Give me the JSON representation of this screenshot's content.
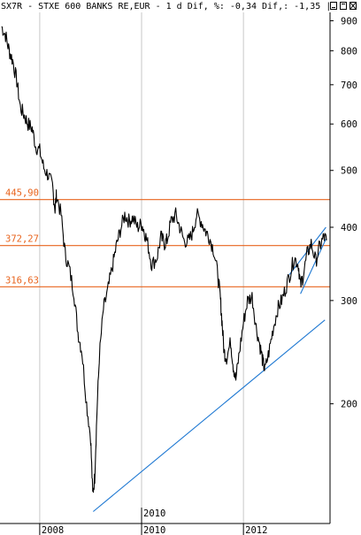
{
  "header": {
    "symbol": "SX7R",
    "text": "SX7R - STXE 600 BANKS RE,EUR -  1 d Dif, %: -0,34 Dif,: -1,35 |"
  },
  "colors": {
    "price": "#000000",
    "horizontal_levels": "#e8641e",
    "trendlines": "#1e78d2",
    "grid": "#c8c8c8",
    "background": "#ffffff"
  },
  "icons": [
    "minimize-icon",
    "maximize-icon",
    "close-icon"
  ],
  "chart_data": {
    "type": "line",
    "title": "SX7R - STXE 600 BANKS RE,EUR -  1 d Dif, %: -0,34 Dif,: -1,35",
    "y_scale": "log",
    "ylim": [
      125,
      930
    ],
    "xlim": [
      2007.22,
      2013.7
    ],
    "y_ticks": [
      900,
      800,
      700,
      600,
      500,
      400,
      300,
      200
    ],
    "x_ticks": [
      {
        "value": 2008,
        "label": "2008"
      },
      {
        "value": 2010,
        "label": "2010"
      },
      {
        "value": 2012,
        "label": "2012"
      }
    ],
    "x_marker": {
      "value": 2010,
      "label": "2010"
    },
    "grid": {
      "vertical": true,
      "horizontal": false
    },
    "horizontal_levels": [
      {
        "value": 445.9,
        "label": "445,90"
      },
      {
        "value": 372.27,
        "label": "372,27"
      },
      {
        "value": 316.63,
        "label": "316,63"
      }
    ],
    "trendlines": [
      {
        "from": [
          2009.05,
          131
        ],
        "to": [
          2013.6,
          278
        ]
      },
      {
        "from": [
          2012.9,
          332
        ],
        "to": [
          2013.62,
          400
        ]
      },
      {
        "from": [
          2013.12,
          308
        ],
        "to": [
          2013.62,
          382
        ]
      }
    ],
    "series": [
      {
        "values": [
          [
            2007.25,
            880
          ],
          [
            2007.33,
            850
          ],
          [
            2007.4,
            800
          ],
          [
            2007.47,
            770
          ],
          [
            2007.55,
            710
          ],
          [
            2007.62,
            640
          ],
          [
            2007.7,
            620
          ],
          [
            2007.77,
            600
          ],
          [
            2007.85,
            590
          ],
          [
            2007.92,
            550
          ],
          [
            2008.0,
            540
          ],
          [
            2008.08,
            505
          ],
          [
            2008.17,
            490
          ],
          [
            2008.25,
            470
          ],
          [
            2008.3,
            430
          ],
          [
            2008.33,
            455
          ],
          [
            2008.42,
            420
          ],
          [
            2008.5,
            360
          ],
          [
            2008.58,
            340
          ],
          [
            2008.67,
            310
          ],
          [
            2008.75,
            265
          ],
          [
            2008.83,
            245
          ],
          [
            2008.92,
            200
          ],
          [
            2009.0,
            175
          ],
          [
            2009.04,
            140
          ],
          [
            2009.08,
            150
          ],
          [
            2009.12,
            190
          ],
          [
            2009.17,
            240
          ],
          [
            2009.25,
            290
          ],
          [
            2009.33,
            310
          ],
          [
            2009.42,
            340
          ],
          [
            2009.5,
            370
          ],
          [
            2009.58,
            395
          ],
          [
            2009.67,
            420
          ],
          [
            2009.75,
            410
          ],
          [
            2009.83,
            415
          ],
          [
            2009.92,
            400
          ],
          [
            2010.0,
            405
          ],
          [
            2010.05,
            395
          ],
          [
            2010.12,
            375
          ],
          [
            2010.2,
            345
          ],
          [
            2010.3,
            355
          ],
          [
            2010.38,
            385
          ],
          [
            2010.45,
            375
          ],
          [
            2010.5,
            380
          ],
          [
            2010.58,
            410
          ],
          [
            2010.67,
            420
          ],
          [
            2010.75,
            400
          ],
          [
            2010.83,
            380
          ],
          [
            2010.92,
            378
          ],
          [
            2011.0,
            392
          ],
          [
            2011.08,
            420
          ],
          [
            2011.17,
            410
          ],
          [
            2011.25,
            395
          ],
          [
            2011.33,
            385
          ],
          [
            2011.42,
            365
          ],
          [
            2011.5,
            330
          ],
          [
            2011.55,
            300
          ],
          [
            2011.58,
            275
          ],
          [
            2011.62,
            245
          ],
          [
            2011.67,
            240
          ],
          [
            2011.75,
            255
          ],
          [
            2011.8,
            232
          ],
          [
            2011.85,
            220
          ],
          [
            2011.92,
            245
          ],
          [
            2012.0,
            275
          ],
          [
            2012.08,
            300
          ],
          [
            2012.17,
            305
          ],
          [
            2012.25,
            270
          ],
          [
            2012.33,
            250
          ],
          [
            2012.38,
            236
          ],
          [
            2012.42,
            228
          ],
          [
            2012.5,
            245
          ],
          [
            2012.58,
            268
          ],
          [
            2012.67,
            290
          ],
          [
            2012.75,
            300
          ],
          [
            2012.83,
            315
          ],
          [
            2012.92,
            335
          ],
          [
            2013.0,
            355
          ],
          [
            2013.08,
            345
          ],
          [
            2013.12,
            318
          ],
          [
            2013.17,
            330
          ],
          [
            2013.25,
            360
          ],
          [
            2013.33,
            375
          ],
          [
            2013.42,
            350
          ],
          [
            2013.5,
            372
          ],
          [
            2013.58,
            385
          ],
          [
            2013.63,
            380
          ]
        ]
      }
    ]
  }
}
